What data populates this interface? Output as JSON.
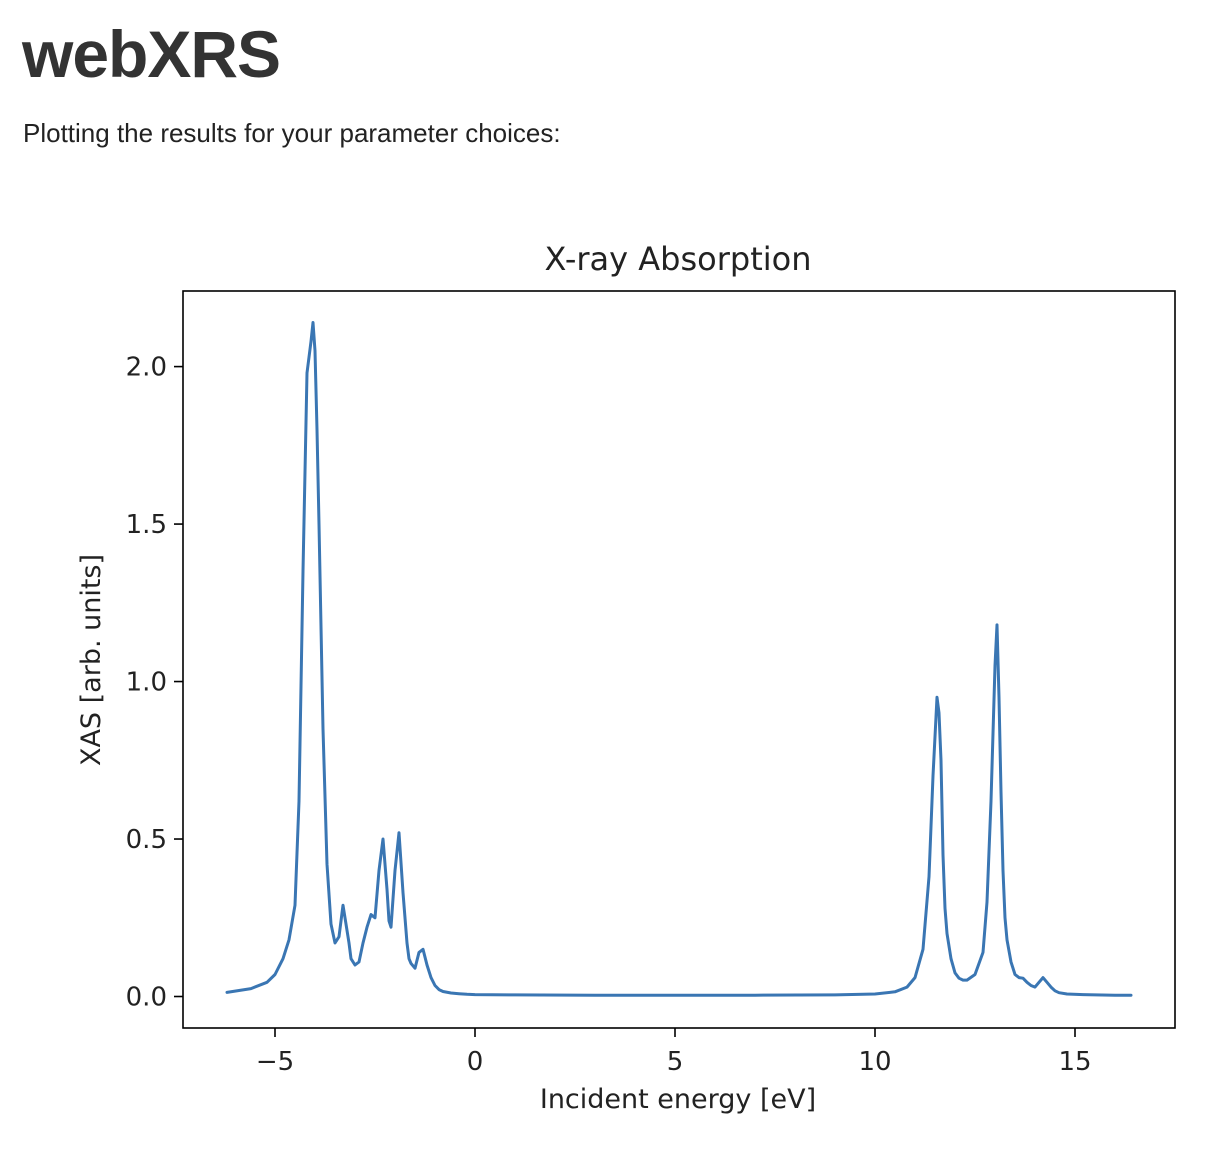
{
  "page": {
    "title": "webXRS",
    "intro": "Plotting the results for your parameter choices:"
  },
  "chart_data": {
    "type": "line",
    "title": "X-ray Absorption",
    "xlabel": "Incident energy [eV]",
    "ylabel": "XAS [arb. units]",
    "xlim": [
      -7.3,
      17.5
    ],
    "ylim": [
      -0.1,
      2.24
    ],
    "xticks": [
      -5,
      0,
      5,
      10,
      15
    ],
    "xtick_labels": [
      "−5",
      "0",
      "5",
      "10",
      "15"
    ],
    "yticks": [
      0.0,
      0.5,
      1.0,
      1.5,
      2.0
    ],
    "ytick_labels": [
      "0.0",
      "0.5",
      "1.0",
      "1.5",
      "2.0"
    ],
    "grid": false,
    "line_color": "#3a76b3",
    "series": [
      {
        "x": [
          -6.2,
          -5.6,
          -5.2,
          -5.0,
          -4.8,
          -4.65,
          -4.5,
          -4.4,
          -4.3,
          -4.2,
          -4.1,
          -4.05,
          -4.0,
          -3.95,
          -3.9,
          -3.8,
          -3.7,
          -3.6,
          -3.5,
          -3.4,
          -3.3,
          -3.2,
          -3.15,
          -3.1,
          -3.0,
          -2.9,
          -2.8,
          -2.7,
          -2.6,
          -2.5,
          -2.4,
          -2.3,
          -2.2,
          -2.15,
          -2.1,
          -2.0,
          -1.9,
          -1.8,
          -1.7,
          -1.65,
          -1.6,
          -1.5,
          -1.4,
          -1.3,
          -1.2,
          -1.1,
          -1.0,
          -0.9,
          -0.8,
          -0.6,
          -0.4,
          -0.2,
          0.0,
          1.0,
          3.0,
          5.0,
          7.0,
          9.0,
          10.0,
          10.5,
          10.8,
          11.0,
          11.2,
          11.35,
          11.45,
          11.55,
          11.6,
          11.65,
          11.7,
          11.75,
          11.8,
          11.9,
          12.0,
          12.1,
          12.2,
          12.3,
          12.5,
          12.7,
          12.8,
          12.9,
          13.0,
          13.05,
          13.1,
          13.15,
          13.2,
          13.25,
          13.3,
          13.4,
          13.5,
          13.6,
          13.7,
          13.8,
          13.9,
          14.0,
          14.1,
          14.2,
          14.3,
          14.4,
          14.5,
          14.6,
          14.8,
          15.2,
          16.0,
          16.4
        ],
        "y": [
          0.013,
          0.025,
          0.045,
          0.07,
          0.12,
          0.18,
          0.29,
          0.62,
          1.35,
          1.98,
          2.08,
          2.14,
          2.05,
          1.8,
          1.5,
          0.85,
          0.42,
          0.23,
          0.17,
          0.19,
          0.29,
          0.21,
          0.17,
          0.12,
          0.1,
          0.11,
          0.17,
          0.22,
          0.26,
          0.25,
          0.4,
          0.5,
          0.34,
          0.24,
          0.22,
          0.4,
          0.52,
          0.33,
          0.17,
          0.12,
          0.105,
          0.09,
          0.14,
          0.15,
          0.1,
          0.06,
          0.035,
          0.022,
          0.016,
          0.011,
          0.009,
          0.007,
          0.006,
          0.005,
          0.004,
          0.004,
          0.004,
          0.005,
          0.008,
          0.015,
          0.03,
          0.06,
          0.15,
          0.38,
          0.7,
          0.95,
          0.9,
          0.75,
          0.45,
          0.28,
          0.2,
          0.12,
          0.075,
          0.058,
          0.052,
          0.052,
          0.07,
          0.14,
          0.3,
          0.62,
          1.05,
          1.18,
          0.95,
          0.65,
          0.4,
          0.25,
          0.18,
          0.11,
          0.07,
          0.06,
          0.058,
          0.045,
          0.035,
          0.03,
          0.045,
          0.06,
          0.045,
          0.03,
          0.018,
          0.012,
          0.008,
          0.006,
          0.004,
          0.004
        ]
      }
    ]
  }
}
